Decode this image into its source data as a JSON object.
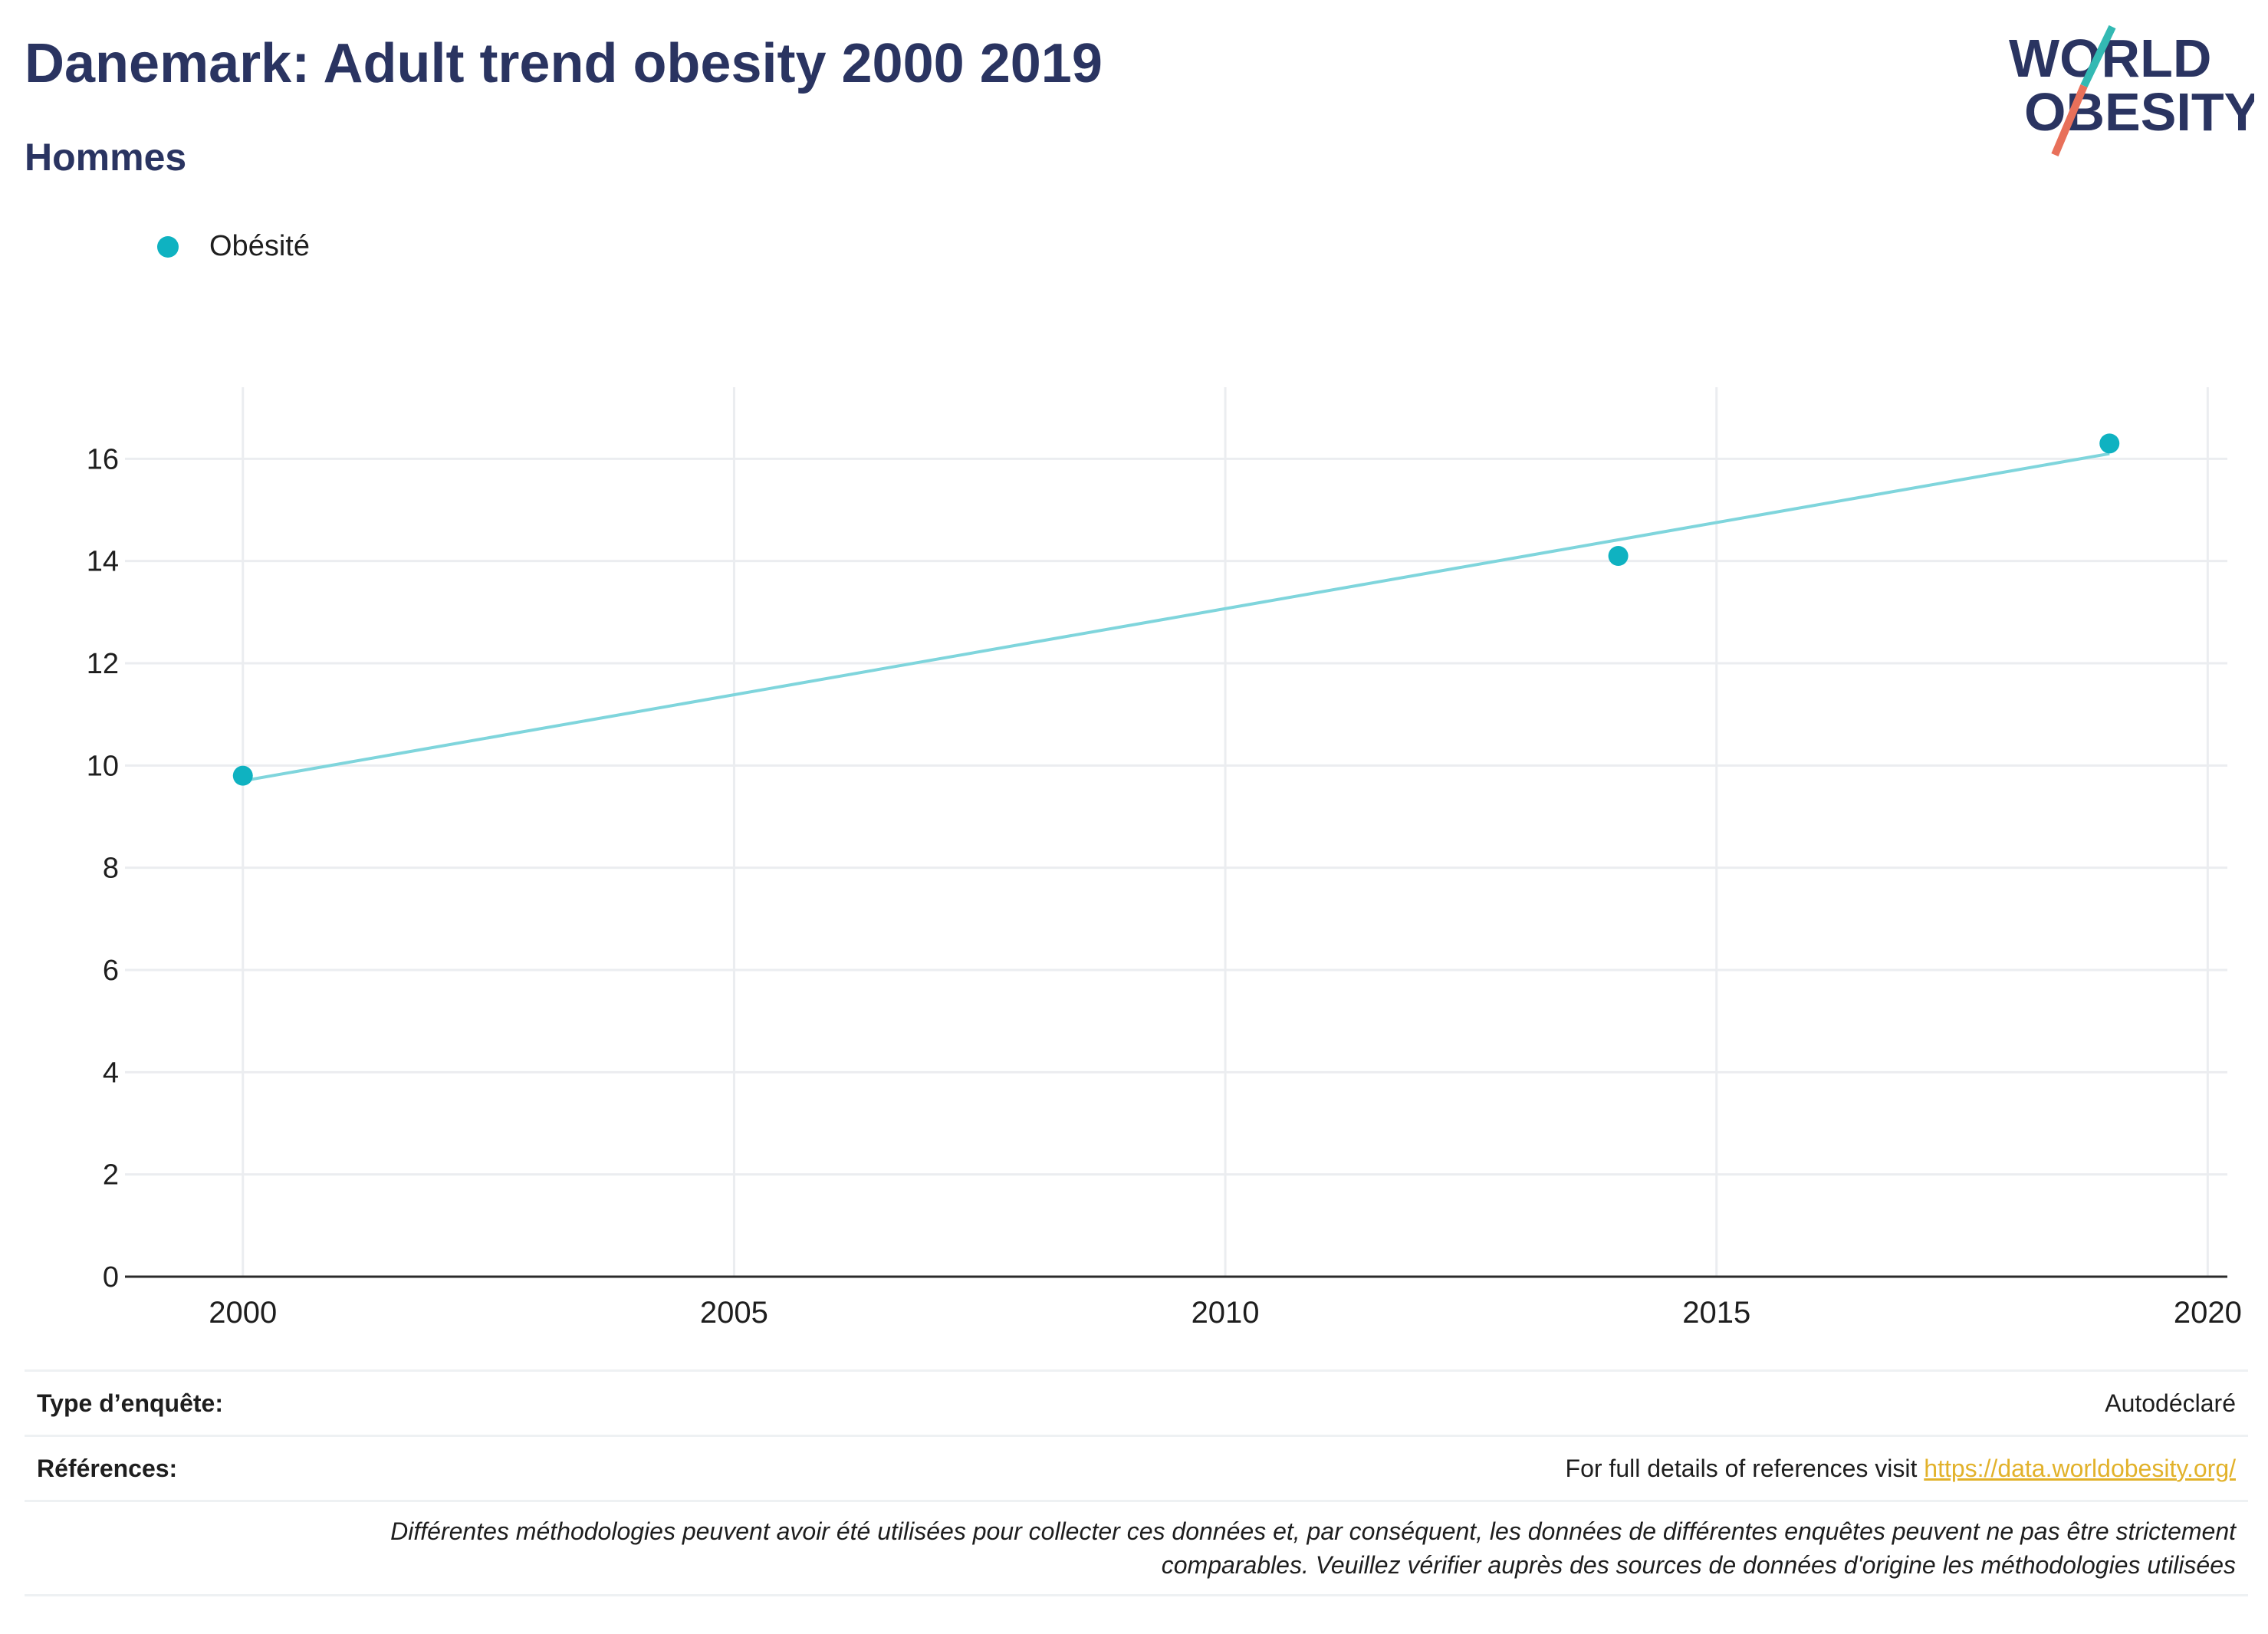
{
  "header": {
    "title": "Danemark: Adult trend obesity 2000 2019",
    "subtitle": "Hommes"
  },
  "logo": {
    "line1": "WORLD",
    "line2": "OBESITY",
    "colors": {
      "text": "#2a3461",
      "slash_top": "#33b9b3",
      "slash_bottom": "#e8705a"
    }
  },
  "chart_data": {
    "type": "scatter",
    "series": [
      {
        "name": "Obésité",
        "color": "#0fb2c1",
        "points": [
          {
            "x": 2000,
            "y": 9.8
          },
          {
            "x": 2014,
            "y": 14.1
          },
          {
            "x": 2019,
            "y": 16.3
          }
        ],
        "trendline": {
          "x": [
            2000,
            2019
          ],
          "y": [
            9.7,
            16.1
          ],
          "color": "#7fd5dc"
        }
      }
    ],
    "xlim": [
      1998.8,
      2020.2
    ],
    "ylim": [
      0,
      17.4
    ],
    "xticks": [
      2000,
      2005,
      2010,
      2015,
      2020
    ],
    "yticks": [
      0,
      2,
      4,
      6,
      8,
      10,
      12,
      14,
      16
    ],
    "grid": true,
    "legend_position": "top-left",
    "xlabel": "",
    "ylabel": ""
  },
  "footer": {
    "survey_type_label": "Type d’enquête:",
    "survey_type_value": "Autodéclaré",
    "references_label": "Références:",
    "references_text": "For full details of references visit ",
    "references_link": "https://data.worldobesity.org/",
    "disclaimer_line1": "Différentes méthodologies peuvent avoir été utilisées pour collecter ces données et, par conséquent, les données de différentes enquêtes peuvent ne pas être strictement",
    "disclaimer_line2": "comparables. Veuillez vérifier auprès des sources de données d'origine les méthodologies utilisées"
  }
}
